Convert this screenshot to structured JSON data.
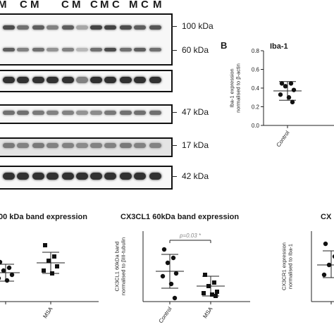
{
  "blot": {
    "lane_labels": [
      "M",
      "C",
      "M",
      "C",
      "M",
      "C",
      "M",
      "C",
      "M",
      "C",
      "M"
    ],
    "mw_markers": [
      "100 kDa",
      "60 kDa",
      "47 kDa",
      "17 kDa",
      "42 kDa"
    ]
  },
  "panel_b": {
    "letter": "B",
    "title": "Iba-1"
  },
  "panel_left": {
    "title": "00 kDa band expression"
  },
  "panel_mid": {
    "title": "CX3CL1 60kDa band expression",
    "annotation": "p=0.03 *"
  },
  "panel_right": {
    "title": "CX"
  },
  "chart_data": [
    {
      "type": "scatter",
      "title": "Iba-1",
      "ylabel": "Iba-1 expression normalised to β-actin",
      "categories": [
        "Control"
      ],
      "ylim": [
        0.0,
        0.8
      ],
      "yticks": [
        "0.0",
        "0.2",
        "0.4",
        "0.6",
        "0.8"
      ],
      "series": [
        {
          "category": "Control",
          "marker": "circle",
          "values": [
            0.45,
            0.45,
            0.42,
            0.38,
            0.33,
            0.3,
            0.25
          ],
          "mean": 0.37,
          "sd_low": 0.27,
          "sd_high": 0.47
        }
      ]
    },
    {
      "type": "scatter",
      "title": "00 kDa band expression",
      "categories": [
        "",
        "MSA"
      ],
      "series": [
        {
          "category": "",
          "marker": "circle",
          "values": [
            0.56,
            0.48,
            0.44,
            0.38,
            0.33,
            0.3
          ],
          "mean": 0.41,
          "sd_low": 0.29,
          "sd_high": 0.53
        },
        {
          "category": "MSA",
          "marker": "square",
          "values": [
            0.8,
            0.64,
            0.58,
            0.5,
            0.44,
            0.4
          ],
          "mean": 0.55,
          "sd_low": 0.4,
          "sd_high": 0.7
        }
      ]
    },
    {
      "type": "scatter",
      "title": "CX3CL1 60kDa band expression",
      "ylabel": "CX3CL1 60kDa band normalised to βIII-tubulin",
      "categories": [
        "Control",
        "MSA"
      ],
      "annotation": "p=0.03 *",
      "series": [
        {
          "category": "Control",
          "marker": "circle",
          "values": [
            0.74,
            0.62,
            0.55,
            0.4,
            0.36,
            0.25,
            0.05
          ],
          "mean": 0.43,
          "sd_low": 0.19,
          "sd_high": 0.67
        },
        {
          "category": "MSA",
          "marker": "square",
          "values": [
            0.38,
            0.27,
            0.22,
            0.14,
            0.12,
            0.1,
            0.08
          ],
          "mean": 0.22,
          "sd_low": 0.08,
          "sd_high": 0.36
        }
      ]
    },
    {
      "type": "scatter",
      "title": "CX",
      "ylabel": "CX3CR1 expression normalised to Iba-1",
      "categories": [
        ""
      ],
      "series": [
        {
          "category": "",
          "marker": "circle",
          "values": [
            0.82,
            0.64,
            0.52,
            0.44,
            0.38
          ],
          "mean": 0.52,
          "sd_low": 0.34,
          "sd_high": 0.72
        }
      ]
    }
  ]
}
